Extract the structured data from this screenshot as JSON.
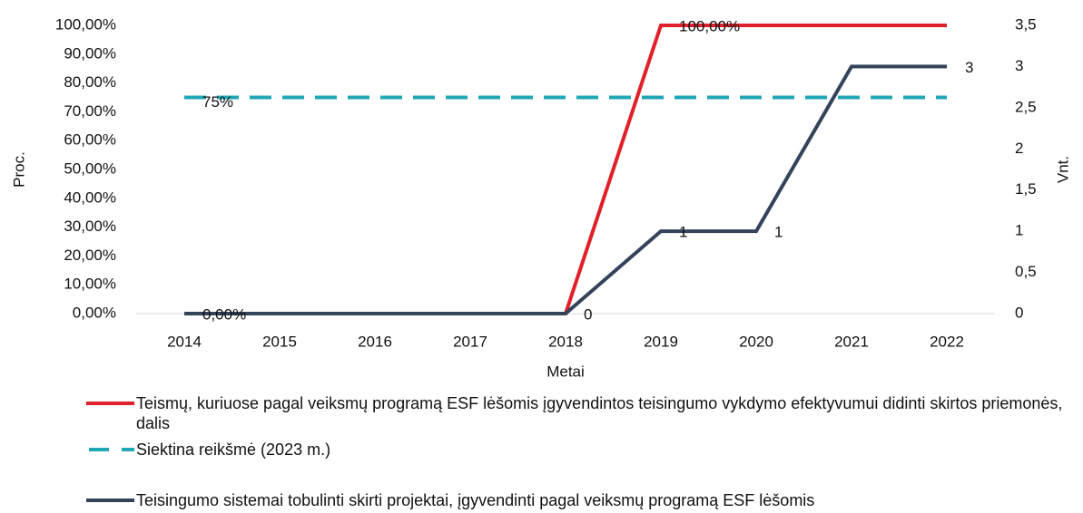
{
  "chart_data": {
    "type": "line",
    "x_label": "Metai",
    "y_label": "Proc.",
    "y2_label": "Vnt.",
    "categories": [
      "2014",
      "2015",
      "2016",
      "2017",
      "2018",
      "2019",
      "2020",
      "2021",
      "2022"
    ],
    "ylim": [
      0,
      100
    ],
    "yticks": [
      {
        "value": 0,
        "label": "0,00%"
      },
      {
        "value": 10,
        "label": "10,00%"
      },
      {
        "value": 20,
        "label": "20,00%"
      },
      {
        "value": 30,
        "label": "30,00%"
      },
      {
        "value": 40,
        "label": "40,00%"
      },
      {
        "value": 50,
        "label": "50,00%"
      },
      {
        "value": 60,
        "label": "60,00%"
      },
      {
        "value": 70,
        "label": "70,00%"
      },
      {
        "value": 80,
        "label": "80,00%"
      },
      {
        "value": 90,
        "label": "90,00%"
      },
      {
        "value": 100,
        "label": "100,00%"
      }
    ],
    "y2lim": [
      0,
      3.5
    ],
    "y2ticks": [
      0,
      {
        "value": 0.5,
        "label": "0,5"
      },
      1,
      {
        "value": 1.5,
        "label": "1,5"
      },
      2,
      {
        "value": 2.5,
        "label": "2,5"
      },
      3,
      {
        "value": 3.5,
        "label": "3,5"
      }
    ],
    "series": [
      {
        "name": "Teismų, kuriuose pagal veiksmų programą ESF lėšomis įgyvendintos teisingumo vykdymo efektyvumui didinti skirtos priemonės, dalis",
        "color": "#e0202a",
        "dashed": false,
        "values": [
          0,
          0,
          0,
          0,
          0,
          100,
          100,
          100,
          100
        ],
        "value_labels": [
          "0,00%",
          null,
          null,
          null,
          null,
          "100,00%",
          null,
          null,
          null
        ]
      },
      {
        "name": "Siektina reikšmė (2023 m.)",
        "color": "#1fa8b4",
        "dashed": true,
        "values": [
          75,
          75,
          75,
          75,
          75,
          75,
          75,
          75,
          75
        ],
        "value_labels": [
          "75%",
          null,
          null,
          null,
          null,
          null,
          null,
          null,
          null
        ]
      },
      {
        "name": "Teisingumo sistemai tobulinti skirti projektai, įgyvendinti pagal veiksmų programą ESF lėšomis",
        "color": "#34435a",
        "dashed": false,
        "axis": "y2",
        "values": [
          0,
          0,
          0,
          0,
          0,
          1,
          1,
          3,
          3
        ],
        "value_labels": [
          null,
          null,
          null,
          null,
          "0",
          "1",
          "1",
          null,
          "3"
        ]
      }
    ]
  }
}
